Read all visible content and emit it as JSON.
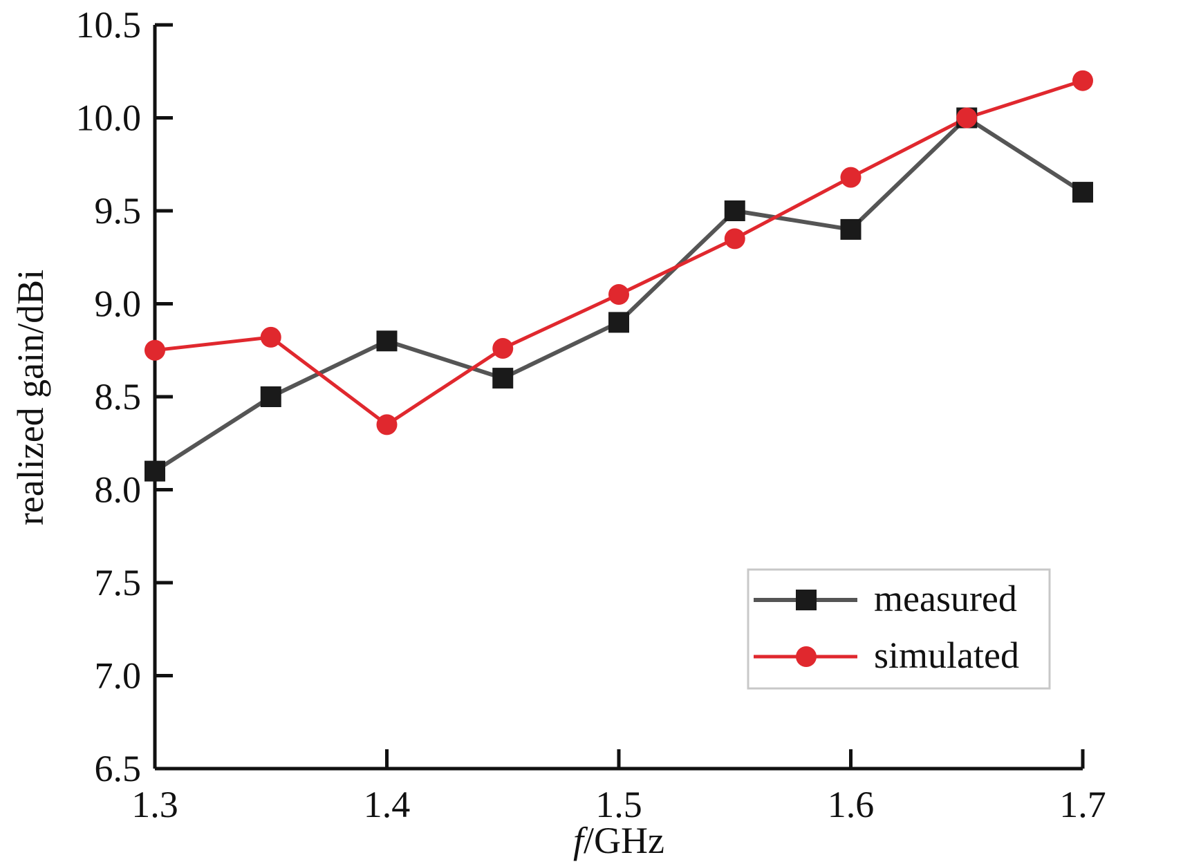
{
  "chart_data": {
    "type": "line",
    "title": "",
    "xlabel_italic": "f",
    "xlabel_rest": "/GHz",
    "ylabel": "realized gain/dBi",
    "xlim": [
      1.3,
      1.7
    ],
    "ylim": [
      6.5,
      10.5
    ],
    "x_ticks": [
      "1.3",
      "1.4",
      "1.5",
      "1.6",
      "1.7"
    ],
    "y_ticks": [
      "6.5",
      "7.0",
      "7.5",
      "8.0",
      "8.5",
      "9.0",
      "9.5",
      "10.0",
      "10.5"
    ],
    "grid": false,
    "legend_position": "bottom-right",
    "series": [
      {
        "name": "measured",
        "color": "#1a1a1a",
        "line_color": "#555555",
        "marker": "square",
        "x": [
          1.3,
          1.35,
          1.4,
          1.45,
          1.5,
          1.55,
          1.6,
          1.65,
          1.7
        ],
        "y": [
          8.1,
          8.5,
          8.8,
          8.6,
          8.9,
          9.5,
          9.4,
          10.0,
          9.6
        ]
      },
      {
        "name": "simulated",
        "color": "#e0282e",
        "line_color": "#e0282e",
        "marker": "circle",
        "x": [
          1.3,
          1.35,
          1.4,
          1.45,
          1.5,
          1.55,
          1.6,
          1.65,
          1.7
        ],
        "y": [
          8.75,
          8.82,
          8.35,
          8.76,
          9.05,
          9.35,
          9.68,
          10.0,
          10.2
        ]
      }
    ]
  }
}
